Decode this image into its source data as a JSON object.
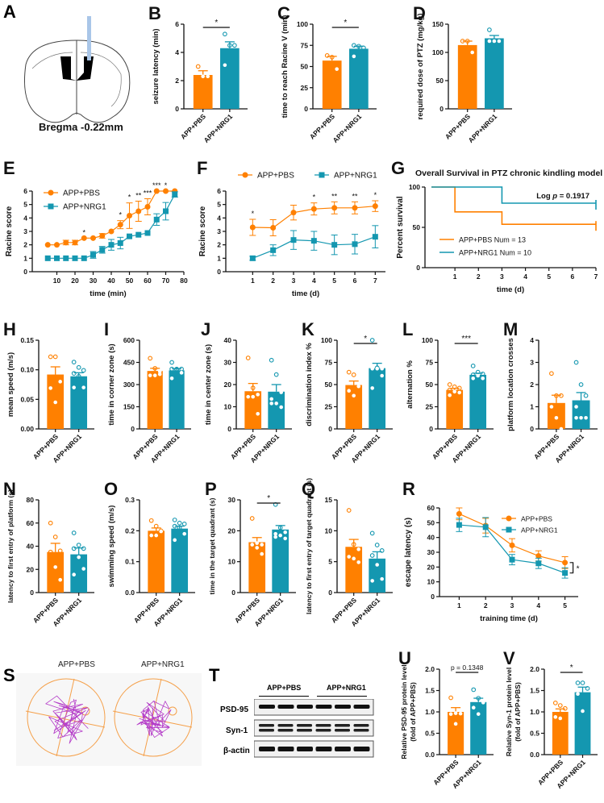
{
  "colors": {
    "pbs": "#FF8000",
    "nrg1": "#1497B0",
    "axis": "#111111",
    "maze": "#F5A04A",
    "track": "#B43CC8"
  },
  "groups": [
    "APP+PBS",
    "APP+NRG1"
  ],
  "panels": {
    "A": {
      "label": "A",
      "caption": "Bregma -0.22mm"
    },
    "S": {
      "label": "S",
      "titles": [
        "APP+PBS",
        "APP+NRG1"
      ]
    },
    "T": {
      "label": "T",
      "groups": [
        "APP+PBS",
        "APP+NRG1"
      ],
      "rows": [
        "PSD-95",
        "Syn-1",
        "β-actin"
      ]
    }
  },
  "chart_data": [
    {
      "id": "B",
      "type": "bar",
      "ylabel": "seizure latency (min)",
      "ylim": [
        0,
        6
      ],
      "yticks": [
        0,
        2,
        4,
        6
      ],
      "categories": [
        "APP+PBS",
        "APP+NRG1"
      ],
      "values": [
        2.4,
        4.3
      ],
      "sem": [
        0.3,
        0.45
      ],
      "points": [
        [
          3.0,
          2.3,
          2.3
        ],
        [
          5.3,
          4.5,
          4.5,
          3.1
        ]
      ],
      "sig": "*"
    },
    {
      "id": "C",
      "type": "bar",
      "ylabel": "time to reach Racine V (min)",
      "ylim": [
        0,
        100
      ],
      "yticks": [
        0,
        25,
        50,
        75,
        100
      ],
      "categories": [
        "APP+PBS",
        "APP+NRG1"
      ],
      "values": [
        57,
        71
      ],
      "sem": [
        5,
        3
      ],
      "points": [
        [
          63,
          61,
          47
        ],
        [
          75,
          74,
          72,
          62
        ]
      ],
      "sig": "*"
    },
    {
      "id": "D",
      "type": "bar",
      "ylabel": "required dose of PTZ (mg/kg)",
      "ylim": [
        0,
        150
      ],
      "yticks": [
        0,
        50,
        100,
        150
      ],
      "categories": [
        "APP+PBS",
        "APP+NRG1"
      ],
      "values": [
        113,
        125
      ],
      "sem": [
        7,
        5
      ],
      "points": [
        [
          120,
          120,
          100
        ],
        [
          140,
          120,
          120,
          120
        ]
      ],
      "sig": ""
    },
    {
      "id": "E",
      "type": "line",
      "xlabel": "time (min)",
      "ylabel": "Racine score",
      "xlim": [
        0,
        80
      ],
      "ylim": [
        0,
        6
      ],
      "xticks": [
        10,
        20,
        30,
        40,
        50,
        60,
        70,
        80
      ],
      "yticks": [
        0,
        1,
        2,
        3,
        4,
        5,
        6
      ],
      "legend": "top-left",
      "x": [
        5,
        10,
        15,
        20,
        25,
        30,
        35,
        40,
        45,
        50,
        55,
        60,
        65,
        70,
        75
      ],
      "series": [
        {
          "name": "APP+PBS",
          "marker": "circle",
          "values": [
            2,
            2,
            2.17,
            2.17,
            2.5,
            2.5,
            2.67,
            3,
            3.5,
            4.17,
            4.5,
            4.83,
            6,
            6,
            6
          ],
          "err": [
            0,
            0,
            0.17,
            0.17,
            0,
            0,
            0.17,
            0,
            0.3,
            0.95,
            0.75,
            0.6,
            0,
            0,
            0
          ]
        },
        {
          "name": "APP+NRG1",
          "marker": "square",
          "values": [
            1,
            1,
            1,
            1,
            1,
            1.25,
            1.63,
            2,
            2.13,
            2.63,
            2.75,
            2.88,
            3.88,
            4.5,
            5.75
          ],
          "err": [
            0,
            0,
            0,
            0,
            0,
            0.25,
            0.25,
            0.4,
            0.43,
            0,
            0,
            0,
            0.43,
            0.65,
            0.2
          ]
        }
      ],
      "annotations": [
        {
          "x": 25,
          "text": "*"
        },
        {
          "x": 45,
          "text": "*"
        },
        {
          "x": 50,
          "text": "*"
        },
        {
          "x": 55,
          "text": "**"
        },
        {
          "x": 60,
          "text": "***"
        },
        {
          "x": 65,
          "text": "***"
        },
        {
          "x": 70,
          "text": "*"
        }
      ]
    },
    {
      "id": "F",
      "type": "line",
      "xlabel": "time (d)",
      "ylabel": "Racine score",
      "xlim": [
        0,
        7.5
      ],
      "ylim": [
        0,
        6
      ],
      "xticks": [
        1,
        2,
        3,
        4,
        5,
        6,
        7
      ],
      "yticks": [
        0,
        1,
        2,
        3,
        4,
        5,
        6
      ],
      "legend": "top",
      "x": [
        1,
        2,
        3,
        4,
        5,
        6,
        7
      ],
      "series": [
        {
          "name": "APP+PBS",
          "marker": "circle",
          "values": [
            3.3,
            3.27,
            4.4,
            4.67,
            4.75,
            4.75,
            4.88
          ],
          "err": [
            0.6,
            0.6,
            0.55,
            0.45,
            0.45,
            0.45,
            0.4
          ]
        },
        {
          "name": "APP+NRG1",
          "marker": "square",
          "values": [
            1.0,
            1.6,
            2.36,
            2.3,
            2.0,
            2.05,
            2.6
          ],
          "err": [
            0.15,
            0.4,
            0.7,
            0.7,
            0.73,
            0.73,
            0.83
          ]
        }
      ],
      "annotations": [
        {
          "x": 1,
          "text": "*"
        },
        {
          "x": 4,
          "text": "*"
        },
        {
          "x": 5,
          "text": "**"
        },
        {
          "x": 6,
          "text": "**"
        },
        {
          "x": 7,
          "text": "*"
        }
      ]
    },
    {
      "id": "G",
      "type": "line",
      "title": "Overall Survival in PTZ chronic kindling model",
      "xlabel": "time (d)",
      "ylabel": "Percent survival",
      "xlim": [
        0,
        7
      ],
      "ylim": [
        0,
        100
      ],
      "xticks": [
        1,
        2,
        3,
        4,
        5,
        6,
        7
      ],
      "yticks": [
        0,
        50,
        100
      ],
      "legend": "bottom-left",
      "stat": "Log p = 0.1917",
      "series": [
        {
          "name": "APP+PBS Num = 13",
          "steps": [
            [
              0,
              100
            ],
            [
              1,
              100
            ],
            [
              1,
              69.2
            ],
            [
              3,
              69.2
            ],
            [
              3,
              53.8
            ],
            [
              7,
              53.8
            ]
          ]
        },
        {
          "name": "APP+NRG1 Num = 10",
          "steps": [
            [
              0,
              100
            ],
            [
              3,
              100
            ],
            [
              3,
              80
            ],
            [
              7,
              80
            ]
          ]
        }
      ]
    },
    {
      "id": "H",
      "type": "bar",
      "ylabel": "mean speed (m/s)",
      "ylim": [
        0,
        0.15
      ],
      "yticks": [
        0,
        0.05,
        0.1,
        0.15
      ],
      "tickfmt": 2,
      "categories": [
        "APP+PBS",
        "APP+NRG1"
      ],
      "values": [
        0.092,
        0.089
      ],
      "sem": [
        0.013,
        0.006
      ],
      "points": [
        [
          0.122,
          0.122,
          0.08,
          0.069,
          0.045
        ],
        [
          0.113,
          0.104,
          0.099,
          0.094,
          0.089,
          0.07,
          0.07
        ]
      ],
      "sig": ""
    },
    {
      "id": "I",
      "type": "bar",
      "ylabel": "time in corner zone (s)",
      "ylim": [
        0,
        600
      ],
      "yticks": [
        0,
        150,
        300,
        450,
        600
      ],
      "categories": [
        "APP+PBS",
        "APP+NRG1"
      ],
      "values": [
        392,
        396
      ],
      "sem": [
        18,
        12
      ],
      "points": [
        [
          478,
          410,
          370,
          362,
          362,
          388
        ],
        [
          450,
          405,
          405,
          405,
          400,
          380,
          342
        ]
      ],
      "sig": ""
    },
    {
      "id": "J",
      "type": "bar",
      "ylabel": "time in center zone (s)",
      "ylim": [
        0,
        40
      ],
      "yticks": [
        0,
        10,
        20,
        30,
        40
      ],
      "categories": [
        "APP+PBS",
        "APP+NRG1"
      ],
      "values": [
        17,
        16.8
      ],
      "sem": [
        3.5,
        3.2
      ],
      "points": [
        [
          32,
          18.5,
          15.5,
          14.5,
          14.5,
          6.8
        ],
        [
          31,
          24.5,
          16.5,
          13.5,
          11.5,
          9.8,
          11.5
        ]
      ],
      "sig": ""
    },
    {
      "id": "K",
      "type": "bar",
      "ylabel": "discrimination index %",
      "ylim": [
        0,
        100
      ],
      "yticks": [
        0,
        25,
        50,
        75,
        100
      ],
      "categories": [
        "APP+PBS",
        "APP+NRG1"
      ],
      "values": [
        49.5,
        68.5
      ],
      "sem": [
        4.5,
        5.5
      ],
      "points": [
        [
          64,
          61,
          48,
          43,
          37.5
        ],
        [
          100,
          69,
          68,
          68,
          68,
          60,
          46
        ]
      ],
      "sig": "*"
    },
    {
      "id": "L",
      "type": "bar",
      "ylabel": "alternation %",
      "ylim": [
        0,
        100
      ],
      "yticks": [
        0,
        25,
        50,
        75,
        100
      ],
      "categories": [
        "APP+PBS",
        "APP+NRG1"
      ],
      "values": [
        44,
        61
      ],
      "sem": [
        1.8,
        1.8
      ],
      "points": [
        [
          50,
          47.5,
          46,
          44,
          42,
          41,
          38
        ],
        [
          71,
          64,
          62,
          61,
          60,
          57,
          57
        ]
      ],
      "sig": "***"
    },
    {
      "id": "M",
      "type": "bar",
      "ylabel": "platform location crosses",
      "ylim": [
        0,
        4
      ],
      "yticks": [
        0,
        1,
        2,
        3,
        4
      ],
      "categories": [
        "APP+PBS",
        "APP+NRG1"
      ],
      "values": [
        1.17,
        1.29
      ],
      "sem": [
        0.35,
        0.35
      ],
      "points": [
        [
          2.5,
          1.5,
          1.5,
          1.0,
          0.5,
          0
        ],
        [
          3,
          2,
          1.5,
          1.0,
          0.5,
          0.5,
          0.5
        ]
      ],
      "sig": ""
    },
    {
      "id": "N",
      "type": "bar",
      "ylabel": "latency to first entry of platform (s)",
      "ylim": [
        0,
        80
      ],
      "yticks": [
        0,
        20,
        40,
        60,
        80
      ],
      "categories": [
        "APP+PBS",
        "APP+NRG1"
      ],
      "values": [
        35,
        33
      ],
      "sem": [
        7.5,
        5.5
      ],
      "points": [
        [
          60,
          48,
          36,
          35,
          22,
          11
        ],
        [
          51.5,
          41,
          38,
          38,
          30.5,
          20.5,
          15.5
        ]
      ],
      "sig": ""
    },
    {
      "id": "O",
      "type": "bar",
      "ylabel": "swimming speed (m/s)",
      "ylim": [
        0,
        0.3
      ],
      "yticks": [
        0,
        0.1,
        0.2,
        0.3
      ],
      "tickfmt": 1,
      "categories": [
        "APP+PBS",
        "APP+NRG1"
      ],
      "values": [
        0.2,
        0.207
      ],
      "sem": [
        0.009,
        0.008
      ],
      "points": [
        [
          0.233,
          0.215,
          0.2,
          0.185,
          0.185,
          0.198
        ],
        [
          0.235,
          0.225,
          0.222,
          0.215,
          0.21,
          0.19,
          0.17
        ]
      ],
      "sig": ""
    },
    {
      "id": "P",
      "type": "bar",
      "ylabel": "time in the target quadrant (s)",
      "ylim": [
        0,
        30
      ],
      "yticks": [
        0,
        10,
        20,
        30
      ],
      "categories": [
        "APP+PBS",
        "APP+NRG1"
      ],
      "values": [
        16.3,
        20.4
      ],
      "sem": [
        1.5,
        1.3
      ],
      "points": [
        [
          24,
          16,
          15.5,
          15.5,
          14.5,
          12.5
        ],
        [
          28.5,
          21,
          19.5,
          19,
          18.5,
          17.5,
          18
        ]
      ],
      "sig": "*"
    },
    {
      "id": "Q",
      "type": "bar",
      "ylabel": "latency to first entry of target quadrant (s)",
      "ylim": [
        0,
        15
      ],
      "yticks": [
        0,
        5,
        10,
        15
      ],
      "categories": [
        "APP+PBS",
        "APP+NRG1"
      ],
      "values": [
        7.4,
        5.5
      ],
      "sem": [
        1.2,
        1.1
      ],
      "points": [
        [
          13.3,
          7.8,
          7.0,
          5.8,
          5.5,
          4.9
        ],
        [
          9.6,
          7.7,
          6.8,
          6.0,
          4.5,
          2.2,
          1.9
        ]
      ],
      "sig": ""
    },
    {
      "id": "R",
      "type": "line",
      "xlabel": "training time (d)",
      "ylabel": "escape latency (s)",
      "xlim": [
        0.5,
        5.5
      ],
      "ylim": [
        0,
        60
      ],
      "xticks": [
        1,
        2,
        3,
        4,
        5
      ],
      "yticks": [
        0,
        10,
        20,
        30,
        40,
        50,
        60
      ],
      "legend": "top-right",
      "x": [
        1,
        2,
        3,
        4,
        5
      ],
      "series": [
        {
          "name": "APP+PBS",
          "marker": "circle",
          "values": [
            56,
            48,
            34.7,
            27.5,
            23
          ],
          "err": [
            4,
            5,
            4.5,
            3.5,
            4
          ]
        },
        {
          "name": "APP+NRG1",
          "marker": "square",
          "values": [
            48.5,
            47,
            25,
            22.5,
            16
          ],
          "err": [
            4.5,
            6.5,
            3.5,
            3.5,
            3.5
          ]
        }
      ],
      "bracket": {
        "text": "*"
      }
    },
    {
      "id": "U",
      "type": "bar",
      "ylabel": "Relative PSD-95 protein level (fold of APP+PBS)",
      "ylim": [
        0,
        2
      ],
      "yticks": [
        0,
        0.5,
        1.0,
        1.5,
        2.0
      ],
      "tickfmt": 1,
      "categories": [
        "APP+PBS",
        "APP+NRG1"
      ],
      "values": [
        1.0,
        1.23
      ],
      "sem": [
        0.1,
        0.09
      ],
      "points": [
        [
          1.33,
          0.97,
          0.96,
          0.95,
          0.72
        ],
        [
          1.52,
          1.32,
          1.22,
          1.1,
          0.95
        ]
      ],
      "sig": "p = 0.1348"
    },
    {
      "id": "V",
      "type": "bar",
      "ylabel": "Relative Syn-1 protein level (fold of APP+PBS)",
      "ylim": [
        0,
        2
      ],
      "yticks": [
        0,
        0.5,
        1.0,
        1.5,
        2.0
      ],
      "tickfmt": 1,
      "categories": [
        "APP+PBS",
        "APP+NRG1"
      ],
      "values": [
        1.0,
        1.46
      ],
      "sem": [
        0.07,
        0.12
      ],
      "points": [
        [
          1.21,
          1.15,
          1.08,
          0.88,
          0.85
        ],
        [
          1.68,
          1.68,
          1.55,
          1.42,
          1.02
        ]
      ],
      "sig": "*"
    }
  ]
}
